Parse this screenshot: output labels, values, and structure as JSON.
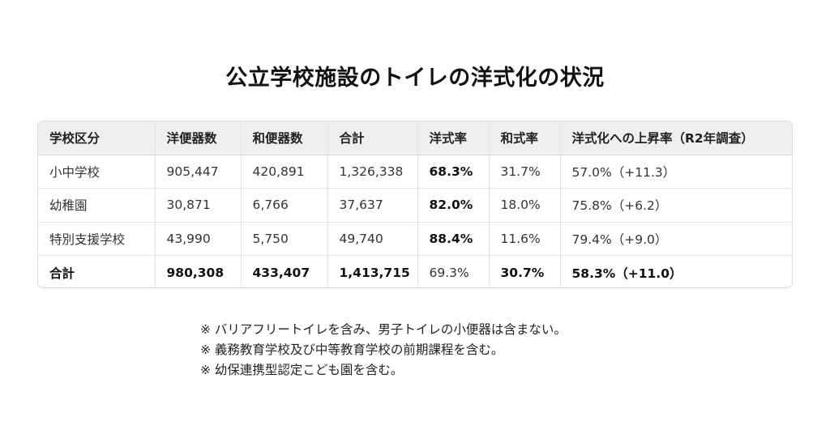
{
  "title": "公立学校施設のトイレの洋式化の状況",
  "table": {
    "headers": [
      "学校区分",
      "洋便器数",
      "和便器数",
      "合計",
      "洋式率",
      "和式率",
      "洋式化への上昇率（R2年調査）"
    ],
    "rows": [
      [
        "小中学校",
        "905,447",
        "420,891",
        "1,326,338",
        "68.3%",
        "31.7%",
        "57.0%（+11.3）"
      ],
      [
        "幼稚園",
        "30,871",
        "6,766",
        "37,637",
        "82.0%",
        "18.0%",
        "75.8%（+6.2）"
      ],
      [
        "特別支援学校",
        "43,990",
        "5,750",
        "49,740",
        "88.4%",
        "11.6%",
        "79.4%（+9.0）"
      ]
    ],
    "total": [
      "合計",
      "980,308",
      "433,407",
      "1,413,715",
      "69.3%",
      "30.7%",
      "58.3%（+11.0）"
    ]
  },
  "notes": [
    "※ バリアフリートイレを含み、男子トイレの小便器は含まない。",
    "※ 義務教育学校及び中等教育学校の前期課程を含む。",
    "※ 幼保連携型認定こども園を含む。"
  ]
}
